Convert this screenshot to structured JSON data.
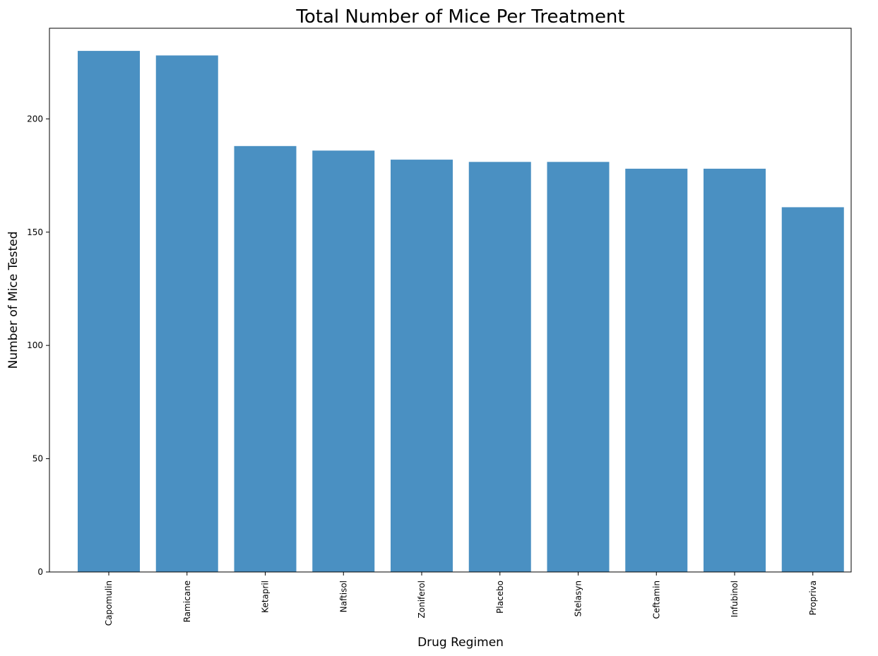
{
  "chart_data": {
    "type": "bar",
    "title": "Total Number of Mice Per Treatment",
    "xlabel": "Drug Regimen",
    "ylabel": "Number of Mice Tested",
    "categories": [
      "Capomulin",
      "Ramicane",
      "Ketapril",
      "Naftisol",
      "Zoniferol",
      "Placebo",
      "Stelasyn",
      "Ceftamin",
      "Infubinol",
      "Propriva"
    ],
    "values": [
      230,
      228,
      188,
      186,
      182,
      181,
      181,
      178,
      178,
      161
    ],
    "ylim": [
      0,
      240
    ],
    "yticks": [
      0,
      50,
      100,
      150,
      200
    ],
    "grid": false,
    "bar_color": "#4a90c2",
    "x_tick_rotation": "vertical"
  }
}
